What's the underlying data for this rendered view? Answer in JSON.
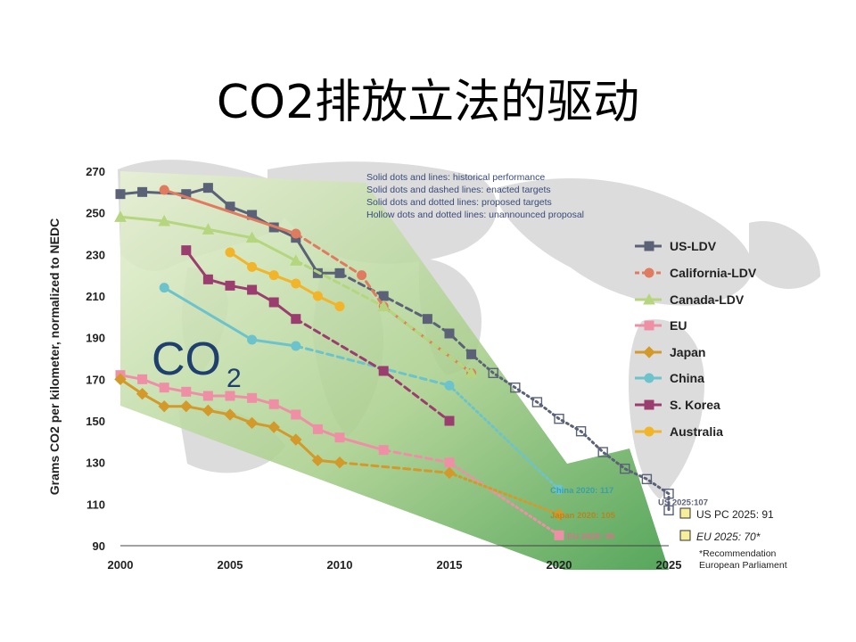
{
  "slide": {
    "title": "CO2排放立法的驱动"
  },
  "chart_data": {
    "type": "line",
    "ylabel": "Grams CO2 per kilometer, normalized to NEDC",
    "xlim": [
      2000,
      2025
    ],
    "ylim": [
      90,
      270
    ],
    "x_ticks": [
      2000,
      2005,
      2010,
      2015,
      2020,
      2025
    ],
    "y_ticks": [
      90,
      110,
      130,
      150,
      170,
      190,
      210,
      230,
      250,
      270
    ],
    "notes": [
      "Solid dots and lines: historical performance",
      "Solid dots and dashed lines: enacted targets",
      "Solid dots and dotted lines: proposed targets",
      "Hollow dots and dotted lines: unannounced proposal"
    ],
    "overlay_text": {
      "main": "CO",
      "sub": "2"
    },
    "series": [
      {
        "name": "US-LDV",
        "color": "#5b6277",
        "marker": "square",
        "historical": [
          [
            2000,
            259
          ],
          [
            2001,
            260
          ],
          [
            2003,
            259
          ],
          [
            2004,
            262
          ],
          [
            2005,
            253
          ],
          [
            2006,
            249
          ],
          [
            2007,
            243
          ],
          [
            2008,
            238
          ],
          [
            2009,
            221
          ],
          [
            2010,
            221
          ]
        ],
        "targets": [
          [
            2010,
            221
          ],
          [
            2012,
            210
          ],
          [
            2014,
            199
          ],
          [
            2015,
            192
          ],
          [
            2016,
            182
          ]
        ],
        "proposal": [
          [
            2016,
            182
          ],
          [
            2017,
            173
          ],
          [
            2018,
            166
          ],
          [
            2019,
            159
          ],
          [
            2020,
            151
          ],
          [
            2021,
            145
          ],
          [
            2022,
            135
          ],
          [
            2023,
            127
          ],
          [
            2024,
            122
          ],
          [
            2025,
            115
          ],
          [
            2025,
            107
          ]
        ]
      },
      {
        "name": "California-LDV",
        "color": "#e07b5f",
        "marker": "circle",
        "historical": [
          [
            2002,
            261
          ],
          [
            2008,
            240
          ]
        ],
        "targets": [
          [
            2008,
            240
          ],
          [
            2011,
            220
          ],
          [
            2012,
            205
          ],
          [
            2016,
            173
          ]
        ],
        "proposal": []
      },
      {
        "name": "Canada-LDV",
        "color": "#b5d67f",
        "marker": "triangle",
        "historical": [
          [
            2000,
            248
          ],
          [
            2002,
            246
          ],
          [
            2004,
            242
          ],
          [
            2006,
            238
          ],
          [
            2008,
            227
          ]
        ],
        "targets": [
          [
            2008,
            227
          ],
          [
            2012,
            205
          ],
          [
            2016,
            173
          ]
        ],
        "proposal": []
      },
      {
        "name": "EU",
        "color": "#ef8fa6",
        "marker": "square",
        "historical": [
          [
            2000,
            172
          ],
          [
            2001,
            170
          ],
          [
            2002,
            166
          ],
          [
            2003,
            164
          ],
          [
            2004,
            162
          ],
          [
            2005,
            162
          ],
          [
            2006,
            161
          ],
          [
            2007,
            158
          ],
          [
            2008,
            153
          ],
          [
            2009,
            146
          ],
          [
            2010,
            142
          ],
          [
            2012,
            136
          ]
        ],
        "targets": [
          [
            2012,
            136
          ],
          [
            2015,
            130
          ]
        ],
        "proposal": [
          [
            2015,
            130
          ],
          [
            2020,
            95
          ]
        ]
      },
      {
        "name": "Japan",
        "color": "#d39a2b",
        "marker": "diamond",
        "historical": [
          [
            2000,
            170
          ],
          [
            2001,
            163
          ],
          [
            2002,
            157
          ],
          [
            2003,
            157
          ],
          [
            2004,
            155
          ],
          [
            2005,
            153
          ],
          [
            2006,
            149
          ],
          [
            2007,
            147
          ],
          [
            2008,
            141
          ],
          [
            2009,
            131
          ],
          [
            2010,
            130
          ]
        ],
        "targets": [
          [
            2010,
            130
          ],
          [
            2015,
            125
          ]
        ],
        "proposal": [
          [
            2015,
            125
          ],
          [
            2020,
            105
          ]
        ]
      },
      {
        "name": "China",
        "color": "#6cc3cb",
        "marker": "circle",
        "historical": [
          [
            2002,
            214
          ],
          [
            2006,
            189
          ],
          [
            2008,
            186
          ]
        ],
        "targets": [
          [
            2008,
            186
          ],
          [
            2015,
            167
          ]
        ],
        "proposal": [
          [
            2015,
            167
          ],
          [
            2020,
            117
          ]
        ]
      },
      {
        "name": "S. Korea",
        "color": "#9b3d6e",
        "marker": "square",
        "historical": [
          [
            2003,
            232
          ],
          [
            2004,
            218
          ],
          [
            2005,
            215
          ],
          [
            2006,
            213
          ],
          [
            2007,
            207
          ],
          [
            2008,
            199
          ]
        ],
        "targets": [
          [
            2008,
            199
          ],
          [
            2012,
            174
          ],
          [
            2015,
            150
          ]
        ],
        "proposal": []
      },
      {
        "name": "Australia",
        "color": "#f2b428",
        "marker": "circle",
        "historical": [
          [
            2005,
            231
          ],
          [
            2006,
            224
          ],
          [
            2007,
            220
          ],
          [
            2008,
            216
          ],
          [
            2009,
            210
          ],
          [
            2010,
            205
          ]
        ],
        "targets": [],
        "proposal": []
      }
    ],
    "end_labels": [
      {
        "text": "China 2020: 117",
        "x": 2020,
        "y": 117,
        "color": "#3aa0a8"
      },
      {
        "text": "Japan 2020: 105",
        "x": 2020,
        "y": 105,
        "color": "#b8841f"
      },
      {
        "text": "EU 2020: 95",
        "x": 2020,
        "y": 95,
        "color": "#d9738a"
      },
      {
        "text": "US 2025:107",
        "x": 2025,
        "y": 107,
        "color": "#5b6277"
      }
    ],
    "side_notes": [
      "US PC 2025: 91",
      "EU 2025: 70*"
    ],
    "footnote": [
      "*Recommendation",
      "European Parliament"
    ]
  }
}
